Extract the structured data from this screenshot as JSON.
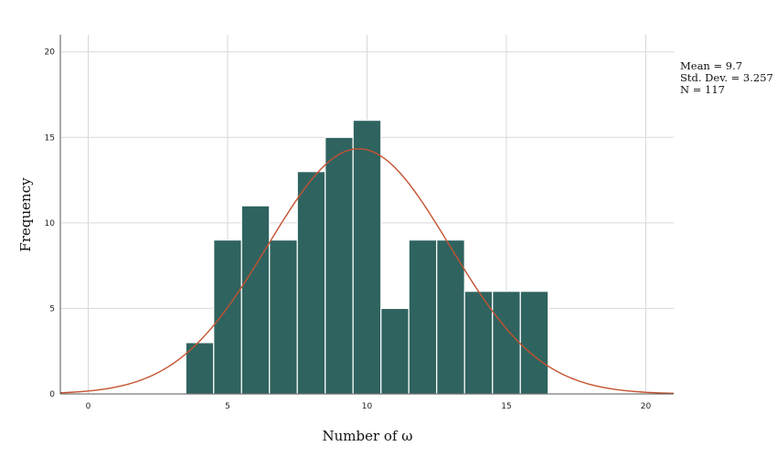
{
  "chart_data": {
    "type": "bar",
    "subtype": "histogram",
    "xlabel": "Number of ω",
    "ylabel": "Frequency",
    "xlim": [
      -1,
      21
    ],
    "ylim": [
      0,
      21
    ],
    "x_ticks": [
      0,
      5,
      10,
      15,
      20
    ],
    "y_ticks": [
      0,
      5,
      10,
      15,
      20
    ],
    "grid": true,
    "bin_width": 1,
    "bins": [
      {
        "x0": 3.5,
        "x1": 4.5,
        "count": 3
      },
      {
        "x0": 4.5,
        "x1": 5.5,
        "count": 9
      },
      {
        "x0": 5.5,
        "x1": 6.5,
        "count": 11
      },
      {
        "x0": 6.5,
        "x1": 7.5,
        "count": 9
      },
      {
        "x0": 7.5,
        "x1": 8.5,
        "count": 13
      },
      {
        "x0": 8.5,
        "x1": 9.5,
        "count": 15
      },
      {
        "x0": 9.5,
        "x1": 10.5,
        "count": 16
      },
      {
        "x0": 10.5,
        "x1": 11.5,
        "count": 5
      },
      {
        "x0": 11.5,
        "x1": 12.5,
        "count": 9
      },
      {
        "x0": 12.5,
        "x1": 13.5,
        "count": 9
      },
      {
        "x0": 13.5,
        "x1": 14.5,
        "count": 6
      },
      {
        "x0": 14.5,
        "x1": 15.5,
        "count": 6
      },
      {
        "x0": 15.5,
        "x1": 16.5,
        "count": 6
      }
    ],
    "normal_curve": {
      "mean": 9.7,
      "std": 3.257,
      "n": 117
    },
    "stats_text": [
      "Mean = 9.7",
      "Std. Dev. = 3.257",
      "N = 117"
    ],
    "legend_position": "top-right",
    "colors": {
      "bar": "#2f6360",
      "bar_edge": "#ffffff",
      "curve": "#c4532f",
      "grid": "#d9d9d9",
      "axis": "#555555"
    }
  }
}
